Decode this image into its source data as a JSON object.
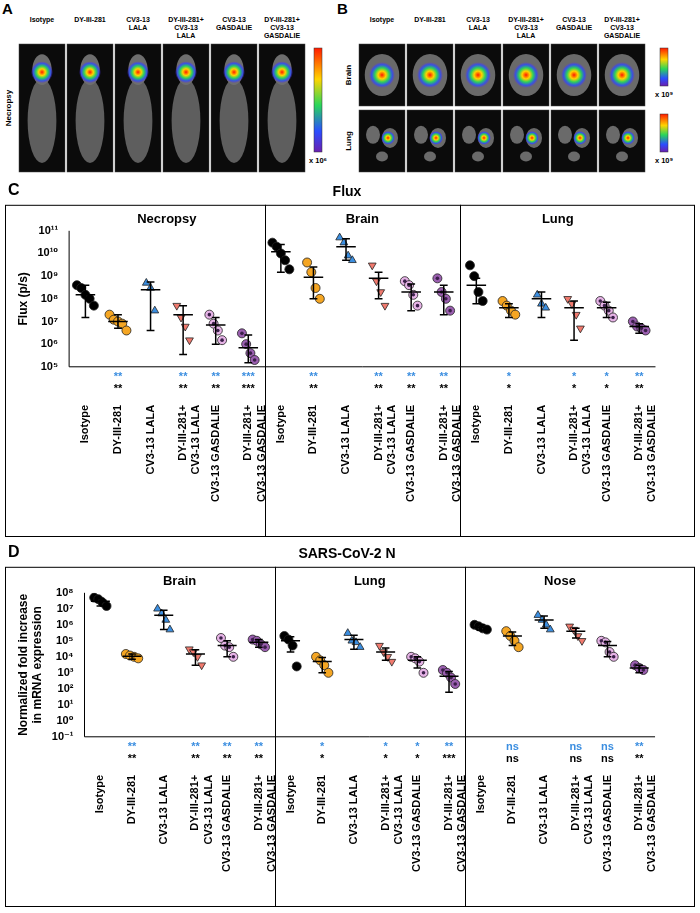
{
  "images": [
    {
      "panel": "A",
      "row_labels": [
        "Necropsy"
      ],
      "categories": [
        "Isotype",
        "DY-III-281",
        "CV3-13 LALA",
        "DY-III-281+ CV3-13 LALA",
        "CV3-13 GASDALIE",
        "DY-III-281+ CV3-13 GASDALIE"
      ],
      "scale_labels": [
        "x 10⁶"
      ]
    },
    {
      "panel": "B",
      "row_labels": [
        "Brain",
        "Lung"
      ],
      "categories": [
        "Isotype",
        "DY-III-281",
        "CV3-13 LALA",
        "DY-III-281+ CV3-13 LALA",
        "CV3-13 GASDALIE",
        "DY-III-281+ CV3-13 GASDALIE"
      ],
      "scale_labels": [
        "x 10⁹",
        "x 10⁹"
      ]
    }
  ],
  "chart_data": [
    {
      "panel": "C",
      "type": "scatter",
      "title": "Flux",
      "y_label": "Flux (p/s)",
      "log": "y",
      "grid": false,
      "ylim": [
        100000.0,
        100000000000.0
      ],
      "yticks": [
        {
          "value": 100000.0,
          "label": "10⁵"
        },
        {
          "value": 1000000.0,
          "label": "10⁶"
        },
        {
          "value": 10000000.0,
          "label": "10⁷"
        },
        {
          "value": 100000000.0,
          "label": "10⁸"
        },
        {
          "value": 1000000000.0,
          "label": "10⁹"
        },
        {
          "value": 10000000000.0,
          "label": "10¹⁰"
        },
        {
          "value": 100000000000.0,
          "label": "10¹¹"
        }
      ],
      "categories": [
        "Isotype",
        "DY-III-281",
        "CV3-13 LALA",
        "DY-III-281+ CV3-13 LALA",
        "CV3-13 GASDALIE",
        "DY-III-281+ CV3-13 GASDALIE"
      ],
      "colors": [
        "#000000",
        "#f5a623",
        "#3b8ee0",
        "#f07a6e",
        "#e6b3e6",
        "#9b5fb0"
      ],
      "markers": [
        "circle",
        "circle",
        "triangle",
        "triangle-down",
        "circle-dot",
        "circle-dot"
      ],
      "groups": [
        {
          "title": "Necropsy",
          "values": [
            [
              400000000.0,
              300000000.0,
              150000000.0,
              100000000.0,
              50000000.0
            ],
            [
              20000000.0,
              12000000.0,
              10000000.0,
              8000000.0,
              4000000.0
            ],
            [
              500000000.0,
              300000000.0,
              30000000.0
            ],
            [
              50000000.0,
              15000000.0,
              6000000.0,
              1500000.0
            ],
            [
              20000000.0,
              8000000.0,
              4000000.0,
              1500000.0
            ],
            [
              3000000.0,
              1000000.0,
              400000.0,
              200000.0
            ]
          ],
          "mean": [
            150000000.0,
            10000000.0,
            250000000.0,
            20000000.0,
            7000000.0,
            700000.0
          ],
          "error": [
            [
              15000000.0,
              400000000.0
            ],
            [
              5000000.0,
              20000000.0
            ],
            [
              4000000.0,
              550000000.0
            ],
            [
              350000.0,
              50000000.0
            ],
            [
              1000000.0,
              15000000.0
            ],
            [
              150000.0,
              2500000.0
            ]
          ],
          "significance": [
            {
              "color": "#3b8ee0",
              "labels": [
                null,
                "**",
                null,
                "**",
                "**",
                "***"
              ]
            },
            {
              "color": "#000000",
              "labels": [
                null,
                "**",
                null,
                "**",
                "**",
                "***"
              ]
            }
          ]
        },
        {
          "title": "Brain",
          "values": [
            [
              30000000000.0,
              20000000000.0,
              10000000000.0,
              5000000000.0,
              2000000000.0
            ],
            [
              4000000000.0,
              1500000000.0,
              300000000.0,
              100000000.0
            ],
            [
              50000000000.0,
              30000000000.0,
              8000000000.0,
              5000000000.0
            ],
            [
              3000000000.0,
              600000000.0,
              200000000.0,
              50000000.0
            ],
            [
              600000000.0,
              400000000.0,
              150000000.0,
              50000000.0
            ],
            [
              800000000.0,
              200000000.0,
              100000000.0,
              30000000.0
            ]
          ],
          "mean": [
            12000000000.0,
            900000000.0,
            20000000000.0,
            800000000.0,
            200000000.0,
            200000000.0
          ],
          "error": [
            [
              1500000000.0,
              25000000000.0
            ],
            [
              100000000.0,
              2500000000.0
            ],
            [
              5000000000.0,
              45000000000.0
            ],
            [
              100000000.0,
              1500000000.0
            ],
            [
              30000000.0,
              450000000.0
            ],
            [
              20000000.0,
              400000000.0
            ]
          ],
          "significance": [
            {
              "color": "#3b8ee0",
              "labels": [
                null,
                "**",
                null,
                "**",
                "**",
                "**"
              ]
            },
            {
              "color": "#000000",
              "labels": [
                null,
                "**",
                null,
                "**",
                "**",
                "**"
              ]
            }
          ]
        },
        {
          "title": "Lung",
          "values": [
            [
              3000000000.0,
              1000000000.0,
              200000000.0,
              80000000.0
            ],
            [
              80000000.0,
              50000000.0,
              30000000.0,
              20000000.0
            ],
            [
              150000000.0,
              60000000.0,
              40000000.0
            ],
            [
              100000000.0,
              60000000.0,
              20000000.0,
              5000000.0
            ],
            [
              80000000.0,
              50000000.0,
              30000000.0,
              15000000.0
            ],
            [
              10000000.0,
              6000000.0,
              5000000.0,
              4000000.0
            ]
          ],
          "mean": [
            400000000.0,
            40000000.0,
            100000000.0,
            40000000.0,
            40000000.0,
            6000000.0
          ],
          "error": [
            [
              60000000.0,
              800000000.0
            ],
            [
              15000000.0,
              60000000.0
            ],
            [
              15000000.0,
              200000000.0
            ],
            [
              1500000.0,
              80000000.0
            ],
            [
              15000000.0,
              70000000.0
            ],
            [
              3000000.0,
              8000000.0
            ]
          ],
          "significance": [
            {
              "color": "#3b8ee0",
              "labels": [
                null,
                "*",
                null,
                "*",
                "*",
                "**"
              ]
            },
            {
              "color": "#000000",
              "labels": [
                null,
                "*",
                null,
                "*",
                "*",
                "**"
              ]
            }
          ]
        }
      ]
    },
    {
      "panel": "D",
      "type": "scatter",
      "title": "SARS-CoV-2 N",
      "y_label": "Normalized fold increase in mRNA expression",
      "log": "y",
      "grid": false,
      "ylim": [
        0.1,
        100000000.0
      ],
      "yticks": [
        {
          "value": 0.1,
          "label": "10⁻¹"
        },
        {
          "value": 1,
          "label": "10⁰"
        },
        {
          "value": 10,
          "label": "10¹"
        },
        {
          "value": 100,
          "label": "10²"
        },
        {
          "value": 1000,
          "label": "10³"
        },
        {
          "value": 10000.0,
          "label": "10⁴"
        },
        {
          "value": 100000.0,
          "label": "10⁵"
        },
        {
          "value": 1000000.0,
          "label": "10⁶"
        },
        {
          "value": 10000000.0,
          "label": "10⁷"
        },
        {
          "value": 100000000.0,
          "label": "10⁸"
        }
      ],
      "categories": [
        "Isotype",
        "DY-III-281",
        "CV3-13 LALA",
        "DY-III-281+ CV3-13 LALA",
        "CV3-13 GASDALIE",
        "DY-III-281+ CV3-13 GASDALIE"
      ],
      "colors": [
        "#000000",
        "#f5a623",
        "#3b8ee0",
        "#f07a6e",
        "#e6b3e6",
        "#9b5fb0"
      ],
      "markers": [
        "circle",
        "circle",
        "triangle",
        "triangle-down",
        "circle-dot",
        "circle-dot"
      ],
      "groups": [
        {
          "title": "Brain",
          "values": [
            [
              50000000.0,
              40000000.0,
              25000000.0,
              15000000.0
            ],
            [
              15000.0,
              12000.0,
              10000.0,
              8000.0
            ],
            [
              10000000.0,
              5000000.0,
              2000000.0,
              500000.0
            ],
            [
              30000.0,
              20000.0,
              10000.0,
              3000.0
            ],
            [
              150000.0,
              50000.0,
              40000.0,
              10000.0
            ],
            [
              120000.0,
              100000.0,
              60000.0,
              40000.0
            ]
          ],
          "mean": [
            30000000.0,
            11000.0,
            4000000.0,
            15000.0,
            50000.0,
            80000.0
          ],
          "error": [
            [
              15000000.0,
              45000000.0
            ],
            [
              7000.0,
              15000.0
            ],
            [
              500000.0,
              8000000.0
            ],
            [
              3000.0,
              28000.0
            ],
            [
              10000.0,
              100000.0
            ],
            [
              40000.0,
              120000.0
            ]
          ],
          "significance": [
            {
              "color": "#3b8ee0",
              "labels": [
                null,
                "**",
                null,
                "**",
                "**",
                "**"
              ]
            },
            {
              "color": "#000000",
              "labels": [
                null,
                "**",
                null,
                "**",
                "**",
                "**"
              ]
            }
          ]
        },
        {
          "title": "Lung",
          "values": [
            [
              200000.0,
              120000.0,
              50000.0,
              2500.0
            ],
            [
              10000.0,
              6000.0,
              3000.0,
              1000.0
            ],
            [
              300000.0,
              100000.0,
              80000.0,
              40000.0
            ],
            [
              50000.0,
              20000.0,
              10000.0,
              5000.0
            ],
            [
              10000.0,
              8000.0,
              5000.0,
              1000.0
            ],
            [
              1500.0,
              1000.0,
              500,
              200
            ]
          ],
          "mean": [
            100000.0,
            5000.0,
            120000.0,
            20000.0,
            6000.0,
            600
          ],
          "error": [
            [
              20000.0,
              180000.0
            ],
            [
              1000.0,
              9000.0
            ],
            [
              30000.0,
              220000.0
            ],
            [
              6000.0,
              35000.0
            ],
            [
              2000.0,
              10000.0
            ],
            [
              60,
              1200.0
            ]
          ],
          "significance": [
            {
              "color": "#3b8ee0",
              "labels": [
                null,
                "*",
                null,
                "*",
                "*",
                "**"
              ]
            },
            {
              "color": "#000000",
              "labels": [
                null,
                "*",
                null,
                "*",
                "*",
                "***"
              ]
            }
          ]
        },
        {
          "title": "Nose",
          "values": [
            [
              1000000.0,
              800000.0,
              600000.0,
              500000.0
            ],
            [
              400000.0,
              200000.0,
              100000.0,
              40000.0
            ],
            [
              4000000.0,
              2000000.0,
              1000000.0,
              500000.0
            ],
            [
              800000.0,
              500000.0,
              200000.0,
              100000.0
            ],
            [
              100000.0,
              80000.0,
              20000.0,
              10000.0
            ],
            [
              3000.0,
              2000.0,
              1500.0
            ]
          ],
          "mean": [
            700000.0,
            200000.0,
            2000000.0,
            400000.0,
            50000.0,
            2000.0
          ],
          "error": [
            [
              450000.0,
              1000000.0
            ],
            [
              50000.0,
              350000.0
            ],
            [
              600000.0,
              3500000.0
            ],
            [
              150000.0,
              600000.0
            ],
            [
              10000.0,
              90000.0
            ],
            [
              1000.0,
              3000.0
            ]
          ],
          "significance": [
            {
              "color": "#3b8ee0",
              "labels": [
                null,
                "ns",
                null,
                "ns",
                "ns",
                "**"
              ]
            },
            {
              "color": "#000000",
              "labels": [
                null,
                "ns",
                null,
                "ns",
                "ns",
                "**"
              ]
            }
          ]
        }
      ]
    }
  ]
}
